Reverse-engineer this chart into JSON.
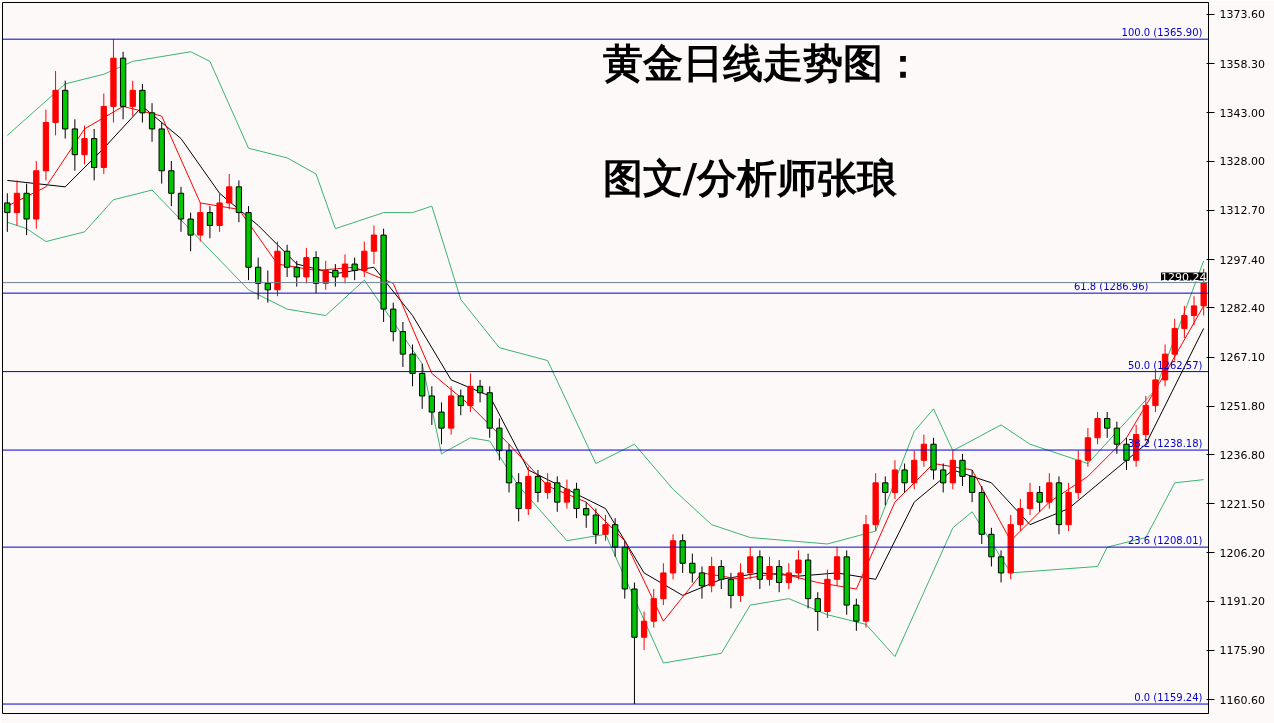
{
  "chart_data": {
    "type": "candlestick",
    "title": "黄金日线走势图：",
    "annotations": [
      "图文/分析师张琅"
    ],
    "categories": [
      null,
      null,
      null,
      null,
      null,
      null,
      null,
      null,
      null,
      null,
      null,
      null,
      null,
      null,
      null,
      null,
      null,
      null,
      null,
      null,
      null,
      null,
      null,
      null,
      null,
      null,
      null,
      null,
      null,
      null,
      null,
      null,
      null,
      null,
      null,
      null,
      null,
      null,
      null,
      null,
      null,
      null,
      null,
      null,
      null,
      null,
      null,
      null,
      null,
      null,
      null,
      null,
      null,
      null,
      null,
      null,
      null,
      null,
      null,
      null,
      null,
      null,
      null,
      null,
      null,
      null,
      null,
      null,
      null,
      null,
      null,
      null,
      null,
      null,
      null,
      null,
      null,
      null,
      null,
      null,
      null,
      null,
      null,
      null,
      null,
      null,
      null,
      null,
      null,
      null,
      null,
      null,
      null,
      null,
      null,
      null,
      null,
      null,
      null,
      null,
      null,
      null,
      null,
      null,
      null,
      null,
      null,
      null,
      null,
      null,
      null,
      null,
      null,
      null,
      null,
      null,
      null,
      null,
      null,
      null,
      null,
      null,
      null,
      null,
      null
    ],
    "ohlc": [
      [
        1315,
        1318,
        1306,
        1312
      ],
      [
        1312,
        1322,
        1308,
        1318
      ],
      [
        1318,
        1321,
        1305,
        1310
      ],
      [
        1310,
        1328,
        1307,
        1325
      ],
      [
        1325,
        1344,
        1322,
        1340
      ],
      [
        1340,
        1356,
        1336,
        1350
      ],
      [
        1350,
        1353,
        1335,
        1338
      ],
      [
        1338,
        1341,
        1325,
        1330
      ],
      [
        1330,
        1339,
        1327,
        1335
      ],
      [
        1335,
        1338,
        1322,
        1326
      ],
      [
        1326,
        1349,
        1324,
        1345
      ],
      [
        1345,
        1365.9,
        1340,
        1360
      ],
      [
        1360,
        1362,
        1341,
        1345
      ],
      [
        1345,
        1353,
        1342,
        1350
      ],
      [
        1350,
        1352,
        1340,
        1343
      ],
      [
        1343,
        1346,
        1334,
        1338
      ],
      [
        1338,
        1340,
        1321,
        1325
      ],
      [
        1325,
        1328,
        1314,
        1318
      ],
      [
        1318,
        1320,
        1306,
        1310
      ],
      [
        1310,
        1312,
        1300,
        1305
      ],
      [
        1305,
        1315,
        1303,
        1312
      ],
      [
        1312,
        1314,
        1304,
        1308
      ],
      [
        1308,
        1318,
        1306,
        1315
      ],
      [
        1315,
        1324,
        1313,
        1320
      ],
      [
        1320,
        1322,
        1309,
        1312
      ],
      [
        1312,
        1314,
        1291,
        1295
      ],
      [
        1295,
        1298,
        1285,
        1290
      ],
      [
        1290,
        1294,
        1284,
        1288
      ],
      [
        1288,
        1303,
        1286,
        1300
      ],
      [
        1300,
        1302,
        1292,
        1295
      ],
      [
        1295,
        1297,
        1289,
        1292
      ],
      [
        1292,
        1301,
        1290,
        1298
      ],
      [
        1298,
        1300,
        1287,
        1290
      ],
      [
        1290,
        1297,
        1288,
        1294
      ],
      [
        1294,
        1296,
        1289,
        1292
      ],
      [
        1292,
        1299,
        1290,
        1296
      ],
      [
        1296,
        1298,
        1291,
        1294
      ],
      [
        1294,
        1303,
        1292,
        1300
      ],
      [
        1300,
        1308,
        1296,
        1305
      ],
      [
        1305,
        1307,
        1278,
        1282
      ],
      [
        1282,
        1284,
        1272,
        1275
      ],
      [
        1275,
        1278,
        1264,
        1268
      ],
      [
        1268,
        1271,
        1258,
        1262
      ],
      [
        1262,
        1265,
        1251,
        1255
      ],
      [
        1255,
        1258,
        1246,
        1250
      ],
      [
        1250,
        1253,
        1240,
        1245
      ],
      [
        1245,
        1258,
        1243,
        1255
      ],
      [
        1255,
        1257,
        1249,
        1252
      ],
      [
        1252,
        1262,
        1250,
        1258
      ],
      [
        1258,
        1260,
        1253,
        1256
      ],
      [
        1256,
        1258,
        1242,
        1245
      ],
      [
        1245,
        1248,
        1235,
        1238
      ],
      [
        1238,
        1240,
        1225,
        1228
      ],
      [
        1228,
        1231,
        1216,
        1220
      ],
      [
        1220,
        1233,
        1218,
        1230
      ],
      [
        1230,
        1232,
        1222,
        1225
      ],
      [
        1225,
        1231,
        1223,
        1228
      ],
      [
        1228,
        1230,
        1219,
        1222
      ],
      [
        1222,
        1229,
        1220,
        1226
      ],
      [
        1226,
        1228,
        1217,
        1220
      ],
      [
        1220,
        1222,
        1214,
        1218
      ],
      [
        1218,
        1220,
        1209,
        1212
      ],
      [
        1212,
        1218,
        1210,
        1215
      ],
      [
        1215,
        1217,
        1205,
        1208
      ],
      [
        1208,
        1210,
        1192,
        1195
      ],
      [
        1195,
        1197,
        1159.24,
        1180
      ],
      [
        1180,
        1188,
        1176,
        1185
      ],
      [
        1185,
        1195,
        1183,
        1192
      ],
      [
        1192,
        1203,
        1190,
        1200
      ],
      [
        1200,
        1212,
        1198,
        1210
      ],
      [
        1210,
        1212,
        1200,
        1203
      ],
      [
        1203,
        1206,
        1197,
        1200
      ],
      [
        1200,
        1202,
        1192,
        1196
      ],
      [
        1196,
        1205,
        1194,
        1202
      ],
      [
        1202,
        1204,
        1195,
        1198
      ],
      [
        1198,
        1200,
        1189,
        1193
      ],
      [
        1193,
        1203,
        1191,
        1200
      ],
      [
        1200,
        1208,
        1198,
        1205
      ],
      [
        1205,
        1207,
        1195,
        1198
      ],
      [
        1198,
        1205,
        1196,
        1202
      ],
      [
        1202,
        1204,
        1194,
        1197
      ],
      [
        1197,
        1203,
        1195,
        1200
      ],
      [
        1200,
        1207,
        1198,
        1204
      ],
      [
        1204,
        1206,
        1189,
        1192
      ],
      [
        1192,
        1194,
        1182,
        1188
      ],
      [
        1188,
        1201,
        1186,
        1198
      ],
      [
        1198,
        1208,
        1196,
        1205
      ],
      [
        1205,
        1207,
        1187,
        1190
      ],
      [
        1190,
        1192,
        1182,
        1185
      ],
      [
        1185,
        1218,
        1183,
        1215
      ],
      [
        1215,
        1231,
        1213,
        1228
      ],
      [
        1228,
        1230,
        1221,
        1225
      ],
      [
        1225,
        1235,
        1223,
        1232
      ],
      [
        1232,
        1234,
        1225,
        1228
      ],
      [
        1228,
        1238,
        1226,
        1235
      ],
      [
        1235,
        1243,
        1233,
        1240
      ],
      [
        1240,
        1242,
        1229,
        1232
      ],
      [
        1232,
        1234,
        1225,
        1228
      ],
      [
        1228,
        1238,
        1226,
        1235
      ],
      [
        1235,
        1237,
        1227,
        1230
      ],
      [
        1230,
        1232,
        1222,
        1225
      ],
      [
        1225,
        1227,
        1209,
        1212
      ],
      [
        1212,
        1214,
        1202,
        1205
      ],
      [
        1205,
        1207,
        1197,
        1200
      ],
      [
        1200,
        1218,
        1198,
        1215
      ],
      [
        1215,
        1223,
        1213,
        1220
      ],
      [
        1220,
        1228,
        1218,
        1225
      ],
      [
        1225,
        1227,
        1219,
        1222
      ],
      [
        1222,
        1231,
        1220,
        1228
      ],
      [
        1228,
        1230,
        1212,
        1215
      ],
      [
        1215,
        1228,
        1213,
        1225
      ],
      [
        1225,
        1238,
        1223,
        1235
      ],
      [
        1235,
        1245,
        1233,
        1242
      ],
      [
        1242,
        1250,
        1240,
        1248
      ],
      [
        1248,
        1250,
        1242,
        1245
      ],
      [
        1245,
        1247,
        1237,
        1240
      ],
      [
        1240,
        1242,
        1232,
        1235
      ],
      [
        1235,
        1246,
        1233,
        1243
      ],
      [
        1243,
        1255,
        1241,
        1252
      ],
      [
        1252,
        1263,
        1250,
        1260
      ],
      [
        1260,
        1271,
        1258,
        1268
      ],
      [
        1268,
        1279,
        1266,
        1276
      ],
      [
        1276,
        1283,
        1273,
        1280
      ],
      [
        1280,
        1286,
        1277,
        1283
      ],
      [
        1283,
        1294.5,
        1280,
        1290.24
      ]
    ],
    "colors": [
      "#00c800",
      "#ff0000",
      "#00c800",
      "#ff0000",
      "#ff0000",
      "#ff0000",
      "#00c800",
      "#00c800",
      "#ff0000",
      "#00c800",
      "#ff0000",
      "#ff0000",
      "#00c800",
      "#ff0000",
      "#00c800",
      "#00c800",
      "#00c800",
      "#00c800",
      "#00c800",
      "#00c800",
      "#ff0000",
      "#00c800",
      "#ff0000",
      "#ff0000",
      "#00c800",
      "#00c800",
      "#00c800",
      "#00c800",
      "#ff0000",
      "#00c800",
      "#00c800",
      "#ff0000",
      "#00c800",
      "#ff0000",
      "#00c800",
      "#ff0000",
      "#00c800",
      "#ff0000",
      "#ff0000",
      "#00c800",
      "#00c800",
      "#00c800",
      "#00c800",
      "#00c800",
      "#00c800",
      "#00c800",
      "#ff0000",
      "#00c800",
      "#ff0000",
      "#00c800",
      "#00c800",
      "#00c800",
      "#00c800",
      "#00c800",
      "#ff0000",
      "#00c800",
      "#ff0000",
      "#00c800",
      "#ff0000",
      "#00c800",
      "#00c800",
      "#00c800",
      "#ff0000",
      "#00c800",
      "#00c800",
      "#00c800",
      "#ff0000",
      "#ff0000",
      "#ff0000",
      "#ff0000",
      "#00c800",
      "#00c800",
      "#00c800",
      "#ff0000",
      "#00c800",
      "#00c800",
      "#ff0000",
      "#ff0000",
      "#00c800",
      "#ff0000",
      "#00c800",
      "#ff0000",
      "#ff0000",
      "#00c800",
      "#00c800",
      "#ff0000",
      "#ff0000",
      "#00c800",
      "#00c800",
      "#ff0000",
      "#ff0000",
      "#00c800",
      "#ff0000",
      "#00c800",
      "#ff0000",
      "#ff0000",
      "#00c800",
      "#00c800",
      "#ff0000",
      "#00c800",
      "#00c800",
      "#00c800",
      "#00c800",
      "#00c800",
      "#ff0000",
      "#ff0000",
      "#ff0000",
      "#00c800",
      "#ff0000",
      "#00c800",
      "#ff0000",
      "#ff0000",
      "#ff0000",
      "#ff0000",
      "#00c800",
      "#00c800",
      "#00c800",
      "#ff0000",
      "#ff0000",
      "#ff0000",
      "#ff0000",
      "#ff0000",
      "#ff0000",
      "#ff0000",
      "#ff0000"
    ],
    "series": [
      {
        "type": "line",
        "color": "#3cb371",
        "values": [
          1336,
          null,
          null,
          null,
          null,
          null,
          1352,
          null,
          null,
          null,
          1355,
          null,
          null,
          1359,
          null,
          null,
          null,
          null,
          null,
          1362,
          null,
          1359,
          null,
          null,
          null,
          1332,
          null,
          null,
          null,
          1329,
          null,
          null,
          1324,
          null,
          1307,
          null,
          null,
          null,
          null,
          1312,
          null,
          null,
          1312,
          null,
          1314,
          null,
          null,
          1285,
          null,
          null,
          null,
          1270,
          null,
          null,
          null,
          null,
          1266,
          null,
          null,
          null,
          null,
          1234,
          null,
          null,
          null,
          1240,
          null,
          null,
          null,
          1226,
          null,
          null,
          null,
          1215,
          null,
          null,
          null,
          1211,
          null,
          null,
          null,
          null,
          null,
          null,
          null,
          1209,
          null,
          null,
          null,
          null,
          1213,
          null,
          null,
          null,
          1244,
          null,
          1251,
          null,
          1238,
          null,
          null,
          null,
          null,
          1246,
          null,
          null,
          1240,
          null,
          null,
          null,
          null,
          null,
          1234,
          null,
          null,
          null,
          null,
          null,
          null,
          1257,
          null,
          null,
          null,
          null,
          1297
        ]
      },
      {
        "type": "line",
        "color": "#3cb371",
        "values": [
          1309,
          null,
          1307,
          null,
          1303,
          null,
          null,
          null,
          1306,
          null,
          null,
          1316,
          null,
          null,
          null,
          1319,
          null,
          null,
          null,
          null,
          null,
          null,
          null,
          null,
          null,
          1288,
          null,
          null,
          null,
          1282,
          null,
          null,
          null,
          1280,
          null,
          null,
          null,
          1291,
          null,
          null,
          null,
          null,
          null,
          1265,
          null,
          1237,
          null,
          null,
          1242,
          null,
          1241,
          null,
          null,
          1227,
          null,
          null,
          null,
          null,
          1210,
          null,
          null,
          null,
          1212,
          null,
          null,
          null,
          null,
          null,
          1172,
          null,
          null,
          null,
          null,
          null,
          1175,
          null,
          null,
          1190,
          null,
          null,
          null,
          1192,
          null,
          null,
          null,
          1187,
          null,
          null,
          null,
          1184,
          null,
          null,
          1174,
          null,
          null,
          null,
          null,
          null,
          1214,
          null,
          1219,
          null,
          null,
          null,
          1200,
          null,
          null,
          null,
          null,
          null,
          null,
          null,
          null,
          1202,
          1208,
          null,
          null,
          null,
          1211,
          null,
          null,
          1228,
          null,
          null,
          1229
        ]
      },
      {
        "type": "line",
        "color": "#000000",
        "values": [
          1322,
          null,
          null,
          null,
          null,
          null,
          1320,
          null,
          null,
          null,
          1332,
          null,
          null,
          null,
          1345,
          null,
          null,
          null,
          1335,
          null,
          null,
          null,
          1318,
          null,
          null,
          null,
          1308,
          null,
          null,
          null,
          1296,
          null,
          null,
          null,
          1293,
          null,
          null,
          null,
          1295,
          null,
          null,
          null,
          1280,
          null,
          null,
          null,
          1260,
          null,
          null,
          null,
          1255,
          null,
          null,
          null,
          1232,
          null,
          null,
          null,
          1226,
          null,
          null,
          null,
          1220,
          null,
          null,
          null,
          1200,
          null,
          null,
          null,
          1193,
          null,
          null,
          null,
          1198,
          null,
          null,
          null,
          1200,
          null,
          null,
          null,
          1199,
          null,
          null,
          null,
          1200,
          null,
          null,
          null,
          1198,
          null,
          null,
          null,
          1222,
          null,
          null,
          null,
          1232,
          null,
          null,
          null,
          1228,
          null,
          null,
          null,
          1215,
          null,
          null,
          null,
          1220,
          null,
          null,
          null,
          1230,
          null,
          null,
          null,
          1240,
          null,
          null,
          null,
          null,
          null,
          1276
        ]
      },
      {
        "type": "line",
        "color": "#ff0000",
        "values": [
          1314,
          null,
          null,
          null,
          1320,
          null,
          null,
          null,
          1338,
          null,
          null,
          null,
          1345,
          null,
          null,
          null,
          1342,
          null,
          null,
          null,
          1315,
          null,
          null,
          null,
          1313,
          null,
          null,
          null,
          1296,
          null,
          null,
          null,
          1294,
          null,
          null,
          null,
          1295,
          null,
          null,
          null,
          1290,
          null,
          null,
          null,
          1262,
          null,
          null,
          null,
          1252,
          null,
          null,
          null,
          1240,
          null,
          null,
          null,
          1227,
          null,
          null,
          null,
          1222,
          null,
          null,
          null,
          1210,
          null,
          null,
          null,
          1185,
          null,
          null,
          null,
          1200,
          null,
          null,
          null,
          1198,
          null,
          null,
          null,
          1200,
          null,
          null,
          null,
          1197,
          null,
          null,
          null,
          1195,
          null,
          null,
          null,
          1222,
          null,
          null,
          null,
          1234,
          null,
          null,
          null,
          1232,
          null,
          null,
          null,
          1210,
          null,
          null,
          null,
          1222,
          null,
          null,
          null,
          1230,
          null,
          null,
          null,
          1242,
          null,
          null,
          null,
          1262,
          null,
          null,
          null,
          1283
        ]
      }
    ],
    "ylim": [
      1156.3,
      1377.3
    ],
    "yticks": [
      {
        "value": 1160.6,
        "label": "1160.60"
      },
      {
        "value": 1175.9,
        "label": "1175.90"
      },
      {
        "value": 1191.2,
        "label": "1191.20"
      },
      {
        "value": 1206.2,
        "label": "1206.20"
      },
      {
        "value": 1221.5,
        "label": "1221.50"
      },
      {
        "value": 1236.8,
        "label": "1236.80"
      },
      {
        "value": 1251.8,
        "label": "1251.80"
      },
      {
        "value": 1267.1,
        "label": "1267.10"
      },
      {
        "value": 1282.4,
        "label": "1282.40"
      },
      {
        "value": 1297.4,
        "label": "1297.40"
      },
      {
        "value": 1312.7,
        "label": "1312.70"
      },
      {
        "value": 1328,
        "label": "1328.00"
      },
      {
        "value": 1343,
        "label": "1343.00"
      },
      {
        "value": 1358.3,
        "label": "1358.30"
      },
      {
        "value": 1373.6,
        "label": "1373.60"
      }
    ],
    "ref_lines": [
      {
        "axis": "y",
        "value": 1365.9,
        "label": "100.0 (1365.90)",
        "color": "#0000cc"
      },
      {
        "axis": "y",
        "value": 1286.96,
        "label": "61.8 (1286.96)",
        "color": "#0000cc"
      },
      {
        "axis": "y",
        "value": 1262.57,
        "label": "50.0 (1262.57)",
        "color": "#0000cc"
      },
      {
        "axis": "y",
        "value": 1238.18,
        "label": "38.2 (1238.18)",
        "color": "#0000cc"
      },
      {
        "axis": "y",
        "value": 1208.01,
        "label": "23.6 (1208.01)",
        "color": "#0000cc"
      },
      {
        "axis": "y",
        "value": 1159.24,
        "label": "0.0 (1159.24)",
        "color": "#0000cc"
      },
      {
        "axis": "y",
        "value": 1290.24,
        "label": "1290.24",
        "color": "#708090"
      }
    ],
    "tick_labels": "y"
  }
}
